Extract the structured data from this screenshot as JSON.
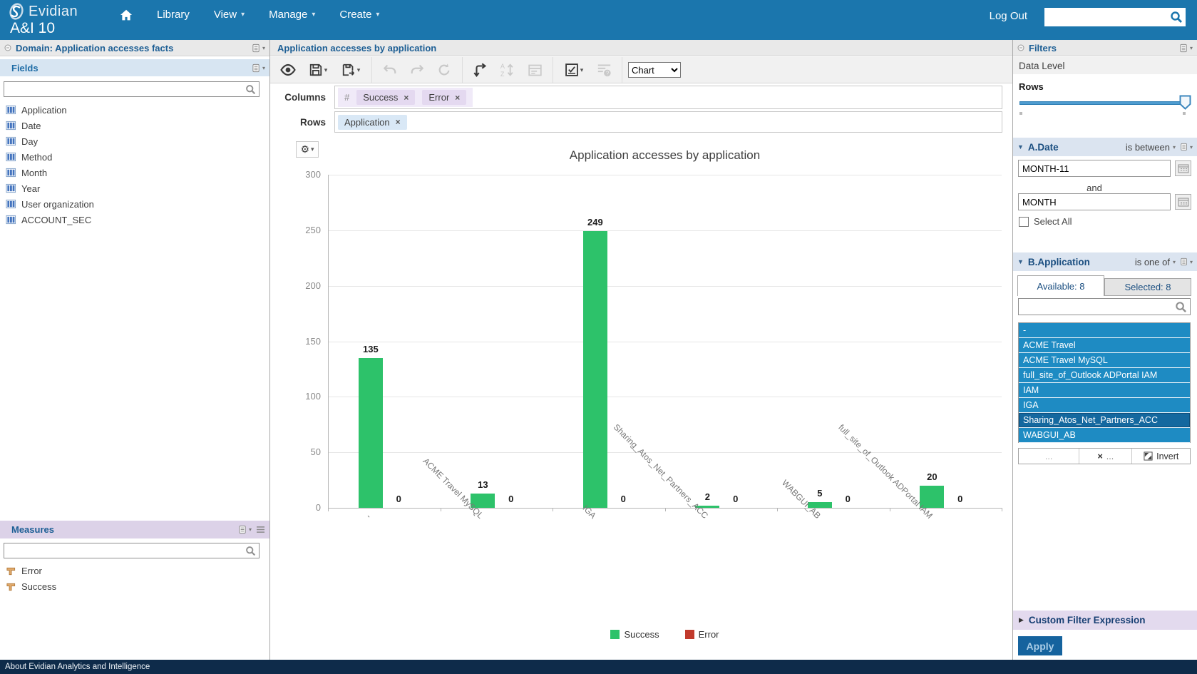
{
  "icons": {
    "caret_down": "▾",
    "triangle_down": "▼",
    "triangle_right": "▶",
    "close": "×",
    "gear": "⚙",
    "toolbar_icon_names": [
      "preview-eye",
      "save",
      "export",
      "undo",
      "redo",
      "refresh",
      "pivot",
      "sort-az",
      "summary",
      "display-options",
      "query-info"
    ]
  },
  "topbar": {
    "brand": "Evidian",
    "product": "A&I 10",
    "nav": {
      "library": "Library",
      "view": "View",
      "manage": "Manage",
      "create": "Create"
    },
    "logout_label": "Log Out",
    "search_value": ""
  },
  "left_panel": {
    "domain_title": "Domain: Application accesses facts",
    "fields": {
      "title": "Fields",
      "search_value": "",
      "items": [
        "Application",
        "Date",
        "Day",
        "Method",
        "Month",
        "Year",
        "User organization",
        "ACCOUNT_SEC"
      ]
    },
    "measures": {
      "title": "Measures",
      "search_value": "",
      "items": [
        "Error",
        "Success"
      ]
    }
  },
  "report": {
    "title": "Application accesses by application",
    "toolbar": {
      "view_select_value": "Chart"
    },
    "columns_label": "Columns",
    "rows_label": "Rows",
    "number_prefix": "#",
    "column_chips": [
      {
        "label": "Success"
      },
      {
        "label": "Error"
      }
    ],
    "row_chips": [
      {
        "label": "Application"
      }
    ]
  },
  "chart_data": {
    "type": "bar",
    "title": "Application accesses by application",
    "categories": [
      "-",
      "ACME Travel MySQL",
      "IGA",
      "Sharing_Atos_Net_Partners_ACC",
      "WABGUI_AB",
      "full_site_of_Outlook ADPortal IAM"
    ],
    "series": [
      {
        "name": "Success",
        "color": "#2DC26A",
        "values": [
          135,
          13,
          249,
          2,
          5,
          20
        ]
      },
      {
        "name": "Error",
        "color": "#C13A2C",
        "values": [
          0,
          0,
          0,
          0,
          0,
          0
        ]
      }
    ],
    "xlabel": "",
    "ylabel": "",
    "ylim": [
      0,
      300
    ],
    "ytick_step": 50,
    "grid": true,
    "legend_position": "bottom"
  },
  "filters": {
    "title": "Filters",
    "data_level_label": "Data Level",
    "rows_label": "Rows",
    "date_filter": {
      "name": "A.Date",
      "operator": "is between",
      "from_value": "MONTH-11",
      "and_label": "and",
      "to_value": "MONTH",
      "select_all_label": "Select All"
    },
    "application_filter": {
      "name": "B.Application",
      "operator": "is one of",
      "tab_available": "Available: 8",
      "tab_selected": "Selected: 8",
      "search_value": "",
      "items": [
        "-",
        "ACME Travel",
        "ACME Travel MySQL",
        "full_site_of_Outlook ADPortal IAM",
        "IAM",
        "IGA",
        "Sharing_Atos_Net_Partners_ACC",
        "WABGUI_AB"
      ],
      "highlighted_item": "Sharing_Atos_Net_Partners_ACC",
      "footer": {
        "more_label": "...",
        "clear_label": "...",
        "invert_label": "Invert"
      }
    },
    "custom_filter_label": "Custom Filter Expression",
    "apply_label": "Apply"
  },
  "statusbar": {
    "about": "About Evidian Analytics and Intelligence"
  }
}
